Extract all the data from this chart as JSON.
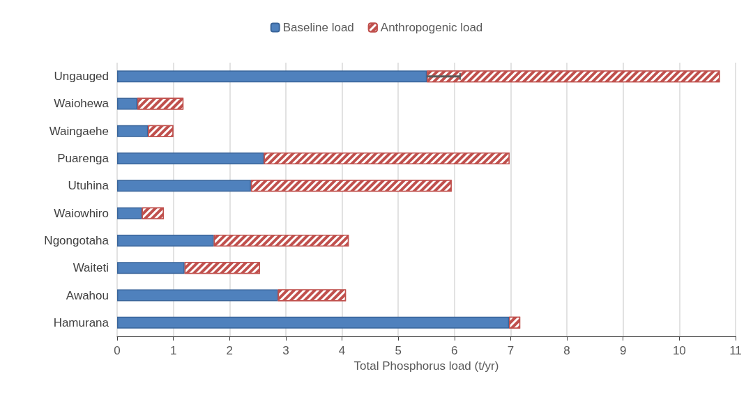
{
  "chart_data": {
    "type": "bar",
    "orientation": "horizontal",
    "stacked": true,
    "xlabel": "Total Phosphorus load (t/yr)",
    "categories": [
      "Ungauged",
      "Waiohewa",
      "Waingaehe",
      "Puarenga",
      "Utuhina",
      "Waiowhiro",
      "Ngongotaha",
      "Waiteti",
      "Awahou",
      "Hamurana"
    ],
    "series": [
      {
        "name": "Baseline load",
        "color": "#4f81bd",
        "values": [
          5.51,
          0.36,
          0.55,
          2.61,
          2.38,
          0.44,
          1.72,
          1.2,
          2.86,
          6.97
        ],
        "errors": [
          [
            5.51,
            6.1
          ],
          null,
          null,
          null,
          null,
          null,
          null,
          null,
          null,
          null
        ]
      },
      {
        "name": "Anthropogenic load",
        "color": "#c0504d",
        "values": [
          5.21,
          0.82,
          0.45,
          4.37,
          3.57,
          0.39,
          2.4,
          1.34,
          1.21,
          0.2
        ]
      }
    ],
    "xlim": [
      0,
      11
    ],
    "xticks": [
      0,
      1,
      2,
      3,
      4,
      5,
      6,
      7,
      8,
      9,
      10,
      11
    ],
    "grid": "x",
    "legend": "top"
  }
}
